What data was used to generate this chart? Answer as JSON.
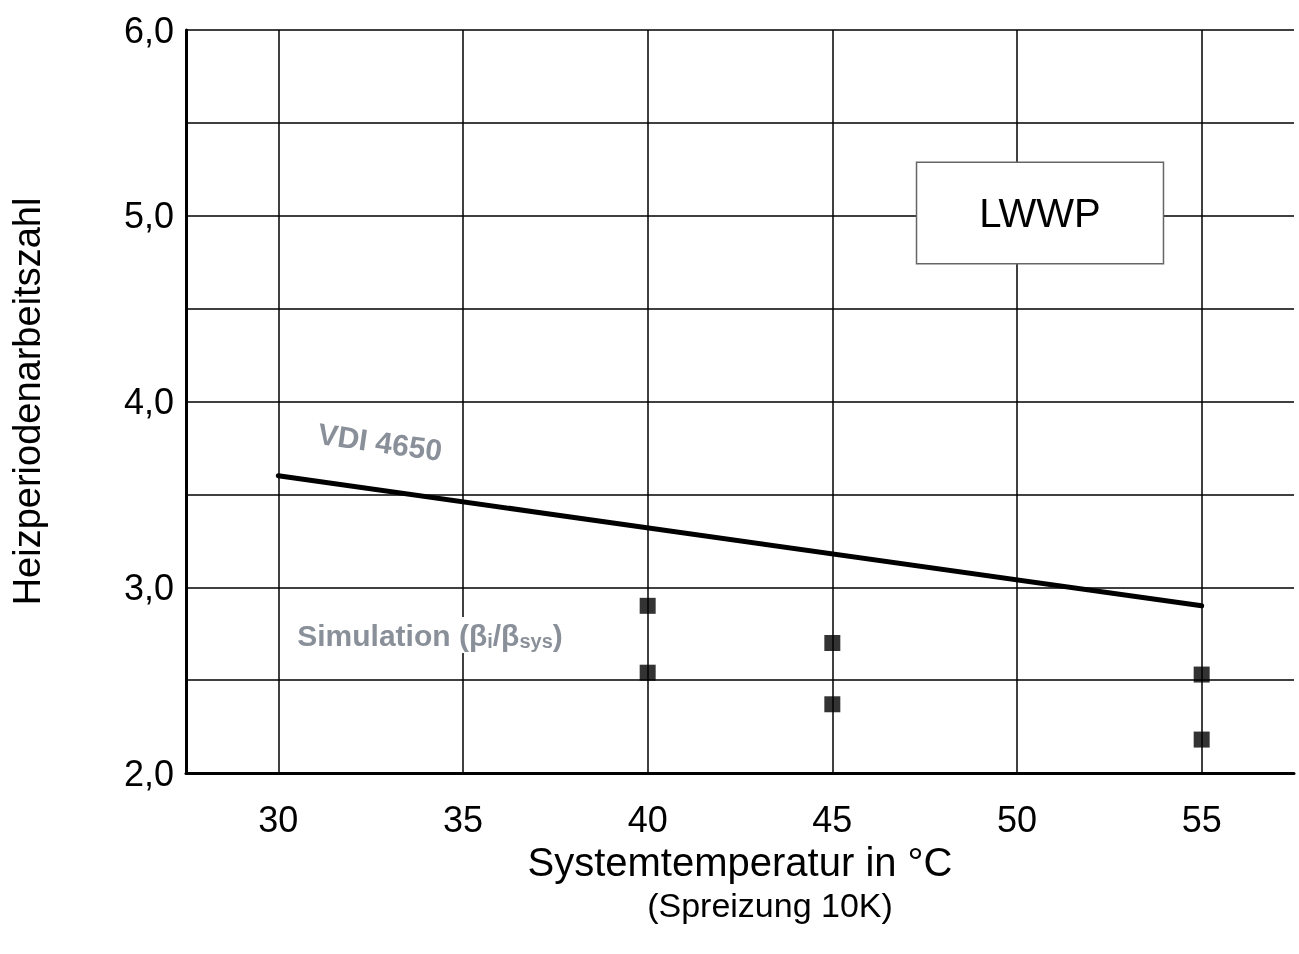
{
  "chart_data": {
    "type": "line",
    "xlabel": "Systemtemperatur in °C",
    "ylabel": "Heizperiodenarbeitszahl",
    "series": [
      {
        "color": "#000000",
        "x": [
          30,
          55
        ],
        "values": [
          3.6,
          2.9
        ],
        "marker": "none",
        "line_style": "solid"
      },
      {
        "type": "scatter",
        "color": "#000000",
        "x": [
          40,
          40,
          45,
          45,
          55,
          55
        ],
        "values": [
          2.9,
          2.54,
          2.7,
          2.37,
          2.53,
          2.18
        ],
        "marker": "square"
      }
    ],
    "xlim": [
      27.5,
      57.5
    ],
    "xticks": [
      30,
      35,
      40,
      45,
      50,
      55
    ],
    "ylim": [
      2,
      6
    ],
    "yticks": [
      {
        "value": 2,
        "label": "2,0"
      },
      {
        "value": 2.5,
        "label": null
      },
      {
        "value": 3,
        "label": "3,0"
      },
      {
        "value": 3.5,
        "label": null
      },
      {
        "value": 4,
        "label": "4,0"
      },
      {
        "value": 4.5,
        "label": null
      },
      {
        "value": 5,
        "label": "5,0"
      },
      {
        "value": 5.5,
        "label": null
      },
      {
        "value": 6,
        "label": "6,0"
      }
    ],
    "grid": true,
    "annotations": [
      "VDI 4650",
      "Simulation (β$_{i}$/β$_{sys}$)",
      "LWWP",
      "(Spreizung 10K)"
    ]
  }
}
